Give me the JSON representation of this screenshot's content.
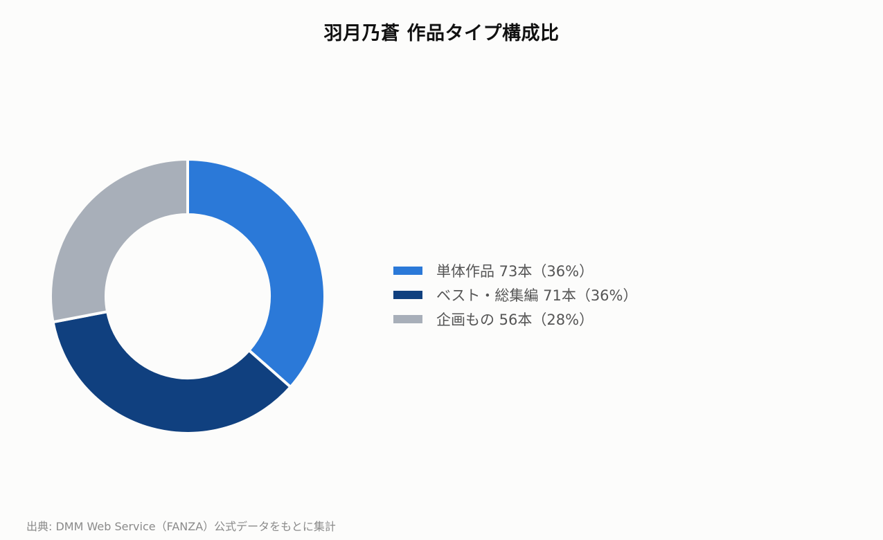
{
  "title": "羽月乃蒼 作品タイプ構成比",
  "source": "出典: DMM Web Service（FANZA）公式データをもとに集計",
  "colors": {
    "background": "#fcfcfb",
    "single": "#2b79d8",
    "best": "#10407f",
    "planning": "#a8afb9"
  },
  "legend": [
    {
      "label": "単体作品 73本（36%）",
      "color": "#2b79d8"
    },
    {
      "label": "ベスト・総集編 71本（36%）",
      "color": "#10407f"
    },
    {
      "label": "企画もの 56本（28%）",
      "color": "#a8afb9"
    }
  ],
  "chart_data": {
    "type": "pie",
    "style": "donut",
    "title": "羽月乃蒼 作品タイプ構成比",
    "categories": [
      "単体作品",
      "ベスト・総集編",
      "企画もの"
    ],
    "values": [
      73,
      71,
      56
    ],
    "units": "本",
    "percentages": [
      36,
      36,
      28
    ],
    "colors": [
      "#2b79d8",
      "#10407f",
      "#a8afb9"
    ],
    "start_angle": "12 o'clock",
    "direction": "clockwise",
    "legend_position": "right"
  }
}
